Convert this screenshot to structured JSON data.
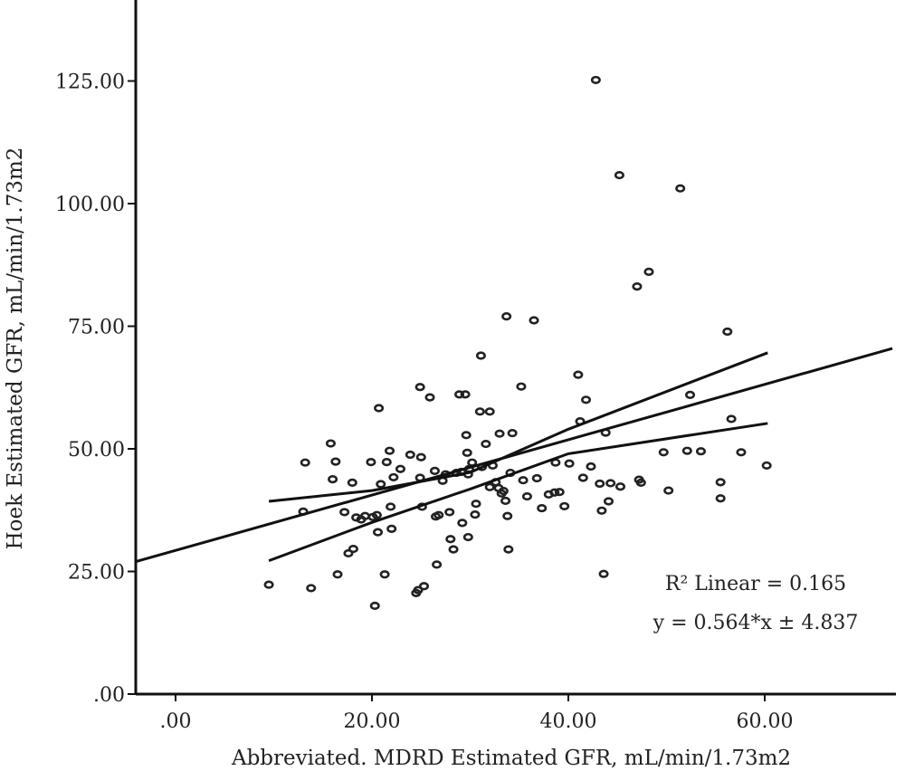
{
  "chart_data": {
    "type": "scatter",
    "xlabel": "Abbreviated. MDRD Estimated GFR, mL/min/1.73m2",
    "ylabel": "Hoek Estimated GFR, mL/min/1.73m2",
    "xlim": [
      -4,
      73
    ],
    "ylim": [
      0,
      140
    ],
    "x_ticks": [
      0,
      20,
      40,
      60
    ],
    "x_tick_labels": [
      ".00",
      "20.00",
      "40.00",
      "60.00"
    ],
    "y_ticks": [
      0,
      25,
      50,
      75,
      100,
      125
    ],
    "y_tick_labels": [
      ".00",
      "25.00",
      "50.00",
      "75.00",
      "100.00",
      "125.00"
    ],
    "grid": false,
    "annotations": {
      "r2": "R² Linear = 0.165",
      "equation": "y = 0.564*x ± 4.837"
    },
    "fit_line": {
      "slope": 0.564,
      "intercept": 29.3,
      "x_range": [
        -4,
        73
      ]
    },
    "ci_upper": [
      [
        9.5,
        39.3
      ],
      [
        20,
        41.5
      ],
      [
        30,
        45.2
      ],
      [
        40,
        54.0
      ],
      [
        60.3,
        69.6
      ]
    ],
    "ci_lower": [
      [
        9.5,
        27.2
      ],
      [
        20,
        35.0
      ],
      [
        30,
        41.8
      ],
      [
        40,
        49.0
      ],
      [
        60.3,
        55.2
      ]
    ],
    "points": [
      [
        9.5,
        22.3
      ],
      [
        13.0,
        37.2
      ],
      [
        13.2,
        47.2
      ],
      [
        13.8,
        21.6
      ],
      [
        15.8,
        51.1
      ],
      [
        16.0,
        43.8
      ],
      [
        16.3,
        47.4
      ],
      [
        16.5,
        24.4
      ],
      [
        17.2,
        37.1
      ],
      [
        17.6,
        28.7
      ],
      [
        18.0,
        43.1
      ],
      [
        18.1,
        29.6
      ],
      [
        18.4,
        36.0
      ],
      [
        18.9,
        35.6
      ],
      [
        19.3,
        36.3
      ],
      [
        19.9,
        47.3
      ],
      [
        20.1,
        36.1
      ],
      [
        20.3,
        18.0
      ],
      [
        20.5,
        36.5
      ],
      [
        20.6,
        33.0
      ],
      [
        20.7,
        58.3
      ],
      [
        20.9,
        42.8
      ],
      [
        21.3,
        24.4
      ],
      [
        21.5,
        47.3
      ],
      [
        21.8,
        49.6
      ],
      [
        21.9,
        38.2
      ],
      [
        22.0,
        33.7
      ],
      [
        22.2,
        44.2
      ],
      [
        22.9,
        45.9
      ],
      [
        23.9,
        48.8
      ],
      [
        24.5,
        20.6
      ],
      [
        24.7,
        21.2
      ],
      [
        24.9,
        44.1
      ],
      [
        24.9,
        62.6
      ],
      [
        25.0,
        48.3
      ],
      [
        25.1,
        38.2
      ],
      [
        25.3,
        22.0
      ],
      [
        25.9,
        60.5
      ],
      [
        26.4,
        45.5
      ],
      [
        26.5,
        36.2
      ],
      [
        26.6,
        26.4
      ],
      [
        26.8,
        36.5
      ],
      [
        27.2,
        43.5
      ],
      [
        27.5,
        44.8
      ],
      [
        27.9,
        37.1
      ],
      [
        28.0,
        31.6
      ],
      [
        28.3,
        29.5
      ],
      [
        28.6,
        45.1
      ],
      [
        28.9,
        61.1
      ],
      [
        29.1,
        45.3
      ],
      [
        29.2,
        34.9
      ],
      [
        29.5,
        61.1
      ],
      [
        29.6,
        52.8
      ],
      [
        29.7,
        49.2
      ],
      [
        29.8,
        44.8
      ],
      [
        29.8,
        32.0
      ],
      [
        29.9,
        45.9
      ],
      [
        30.2,
        47.2
      ],
      [
        30.5,
        36.6
      ],
      [
        30.6,
        38.8
      ],
      [
        31.0,
        57.6
      ],
      [
        31.1,
        69.0
      ],
      [
        31.2,
        46.3
      ],
      [
        31.6,
        51.0
      ],
      [
        32.0,
        42.2
      ],
      [
        32.0,
        57.6
      ],
      [
        32.3,
        46.6
      ],
      [
        32.6,
        43.2
      ],
      [
        32.9,
        42.0
      ],
      [
        33.0,
        53.1
      ],
      [
        33.2,
        40.9
      ],
      [
        33.4,
        41.4
      ],
      [
        33.6,
        39.4
      ],
      [
        33.7,
        77.0
      ],
      [
        33.8,
        36.3
      ],
      [
        33.9,
        29.5
      ],
      [
        34.1,
        45.1
      ],
      [
        34.3,
        53.2
      ],
      [
        35.2,
        62.7
      ],
      [
        35.4,
        43.6
      ],
      [
        35.8,
        40.3
      ],
      [
        36.5,
        76.2
      ],
      [
        36.8,
        44.0
      ],
      [
        37.3,
        37.9
      ],
      [
        38.0,
        40.7
      ],
      [
        38.6,
        41.1
      ],
      [
        38.7,
        47.2
      ],
      [
        39.1,
        41.2
      ],
      [
        39.6,
        38.3
      ],
      [
        40.1,
        47.0
      ],
      [
        41.0,
        65.1
      ],
      [
        41.2,
        55.6
      ],
      [
        41.5,
        44.1
      ],
      [
        41.8,
        60.0
      ],
      [
        42.3,
        46.4
      ],
      [
        42.8,
        125.2
      ],
      [
        43.2,
        42.9
      ],
      [
        43.4,
        37.4
      ],
      [
        43.6,
        24.5
      ],
      [
        43.8,
        53.3
      ],
      [
        44.1,
        39.3
      ],
      [
        44.3,
        43.0
      ],
      [
        45.2,
        105.8
      ],
      [
        45.3,
        42.3
      ],
      [
        47.0,
        83.1
      ],
      [
        47.2,
        43.7
      ],
      [
        47.4,
        43.1
      ],
      [
        48.2,
        86.1
      ],
      [
        49.7,
        49.3
      ],
      [
        50.2,
        41.5
      ],
      [
        51.4,
        103.1
      ],
      [
        52.1,
        49.6
      ],
      [
        52.4,
        61.0
      ],
      [
        53.5,
        49.5
      ],
      [
        55.5,
        43.2
      ],
      [
        55.5,
        39.9
      ],
      [
        56.2,
        73.9
      ],
      [
        56.6,
        56.1
      ],
      [
        57.6,
        49.3
      ],
      [
        60.2,
        46.6
      ]
    ]
  }
}
